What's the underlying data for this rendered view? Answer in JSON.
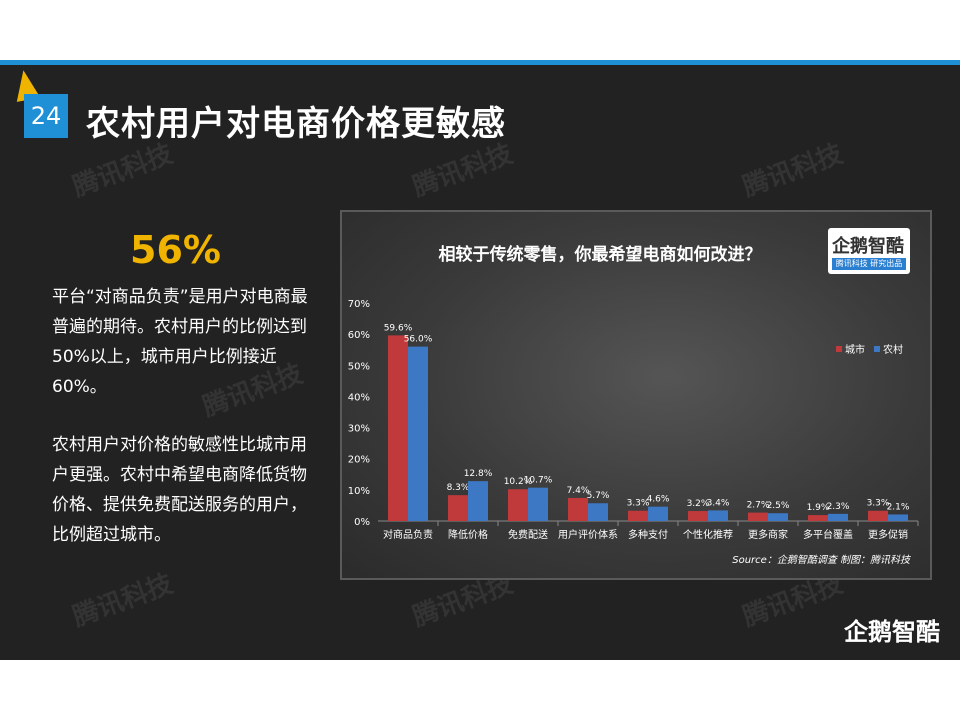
{
  "slide": {
    "page_number": "24",
    "title": "农村用户对电商价格更敏感",
    "highlight_value": "56%",
    "paragraph1": "平台“对商品负责”是用户对电商最普遍的期待。农村用户的比例达到50%以上，城市用户比例接近60%。",
    "paragraph2": "农村用户对价格的敏感性比城市用户更强。农村中希望电商降低货物价格、提供免费配送服务的用户，比例超过城市。",
    "watermark": "腾讯科技",
    "brand_bottom": "企鹅智酷",
    "logo_main": "企鹅智酷",
    "logo_strip": "腾讯科技 研究出品",
    "accent_color": "#1f8fd6",
    "highlight_color": "#f0b400"
  },
  "chart_data": {
    "type": "bar",
    "title": "相较于传统零售，你最希望电商如何改进？",
    "source": "Source：企鹅智酷调查  制图：腾讯科技",
    "categories": [
      "对商品负责",
      "降低价格",
      "免费配送",
      "用户评价体系",
      "多种支付",
      "个性化推荐",
      "更多商家",
      "多平台覆盖",
      "更多促销"
    ],
    "series": [
      {
        "name": "城市",
        "color": "#c0393b",
        "values": [
          59.6,
          8.3,
          10.2,
          7.4,
          3.3,
          3.2,
          2.7,
          1.9,
          3.3
        ],
        "labels": [
          "59.6%",
          "8.3%",
          "10.2%",
          "7.4%",
          "3.3%",
          "3.2%",
          "2.7%",
          "1.9%",
          "3.3%"
        ]
      },
      {
        "name": "农村",
        "color": "#3d78c5",
        "values": [
          56.0,
          12.8,
          10.7,
          5.7,
          4.6,
          3.4,
          2.5,
          2.3,
          2.1
        ],
        "labels": [
          "56.0%",
          "12.8%",
          "10.7%",
          "5.7%",
          "4.6%",
          "3.4%",
          "2.5%",
          "2.3%",
          "2.1%"
        ]
      }
    ],
    "ylim": [
      0,
      70
    ],
    "yticks": [
      "0%",
      "10%",
      "20%",
      "30%",
      "40%",
      "50%",
      "60%",
      "70%"
    ],
    "legend_position": "right",
    "grid": false
  }
}
